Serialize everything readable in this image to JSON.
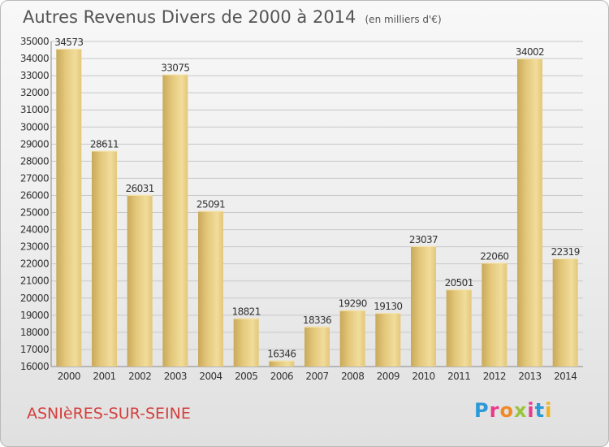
{
  "title": "Autres Revenus Divers de 2000 à 2014",
  "unit": "(en milliers d'€)",
  "commune": "ASNIèRES-SUR-SEINE",
  "logo": {
    "letters": [
      "P",
      "r",
      "o",
      "x",
      "i",
      "t",
      "i"
    ],
    "colors": [
      "#2a9ad8",
      "#e83a8b",
      "#f08a24",
      "#9ac43c",
      "#e83a8b",
      "#2a9ad8",
      "#f0b323"
    ]
  },
  "colors": {
    "bar": "#e3c77a",
    "bar_dark": "#c9a95a",
    "grid": "#c8c8c8"
  },
  "chart_data": {
    "type": "bar",
    "categories": [
      "2000",
      "2001",
      "2002",
      "2003",
      "2004",
      "2005",
      "2006",
      "2007",
      "2008",
      "2009",
      "2010",
      "2011",
      "2012",
      "2013",
      "2014"
    ],
    "values": [
      34573,
      28611,
      26031,
      33075,
      25091,
      18821,
      16346,
      18336,
      19290,
      19130,
      23037,
      20501,
      22060,
      34002,
      22319
    ],
    "ylim": [
      16000,
      35000
    ],
    "yticks": [
      16000,
      17000,
      18000,
      19000,
      20000,
      21000,
      22000,
      23000,
      24000,
      25000,
      26000,
      27000,
      28000,
      29000,
      30000,
      31000,
      32000,
      33000,
      34000,
      35000
    ],
    "grid": true
  }
}
